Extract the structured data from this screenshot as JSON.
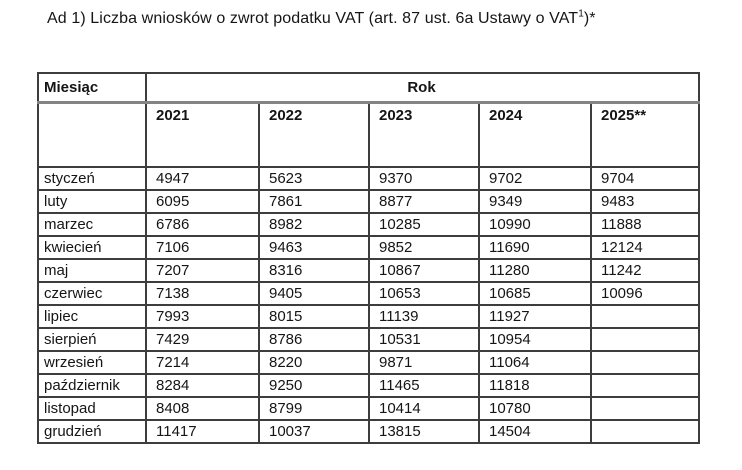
{
  "page": {
    "title_main": "Ad 1) Liczba wniosków o zwrot podatku VAT (art. 87 ust. 6a Ustawy o VAT",
    "title_sup": "1",
    "title_tail": ")*"
  },
  "table": {
    "month_header": "Miesiąc",
    "year_group_header": "Rok",
    "year_columns": [
      "2021",
      "2022",
      "2023",
      "2024",
      "2025**"
    ],
    "rows": [
      {
        "month": "styczeń",
        "values": [
          "4947",
          "5623",
          "9370",
          "9702",
          "9704"
        ]
      },
      {
        "month": "luty",
        "values": [
          "6095",
          "7861",
          "8877",
          "9349",
          "9483"
        ]
      },
      {
        "month": "marzec",
        "values": [
          "6786",
          "8982",
          "10285",
          "10990",
          "11888"
        ]
      },
      {
        "month": "kwiecień",
        "values": [
          "7106",
          "9463",
          "9852",
          "11690",
          "12124"
        ]
      },
      {
        "month": "maj",
        "values": [
          "7207",
          "8316",
          "10867",
          "11280",
          "11242"
        ]
      },
      {
        "month": "czerwiec",
        "values": [
          "7138",
          "9405",
          "10653",
          "10685",
          "10096"
        ]
      },
      {
        "month": "lipiec",
        "values": [
          "7993",
          "8015",
          "11139",
          "11927",
          ""
        ]
      },
      {
        "month": "sierpień",
        "values": [
          "7429",
          "8786",
          "10531",
          "10954",
          ""
        ]
      },
      {
        "month": "wrzesień",
        "values": [
          "7214",
          "8220",
          "9871",
          "11064",
          ""
        ]
      },
      {
        "month": "październik",
        "values": [
          "8284",
          "9250",
          "11465",
          "11818",
          ""
        ]
      },
      {
        "month": "listopad",
        "values": [
          "8408",
          "8799",
          "10414",
          "10780",
          ""
        ]
      },
      {
        "month": "grudzień",
        "values": [
          "11417",
          "10037",
          "13815",
          "14504",
          ""
        ]
      }
    ]
  },
  "colors": {
    "text": "#151515",
    "table_border": "#3d3d3d",
    "header_separator": "#848484",
    "background": "#ffffff"
  }
}
